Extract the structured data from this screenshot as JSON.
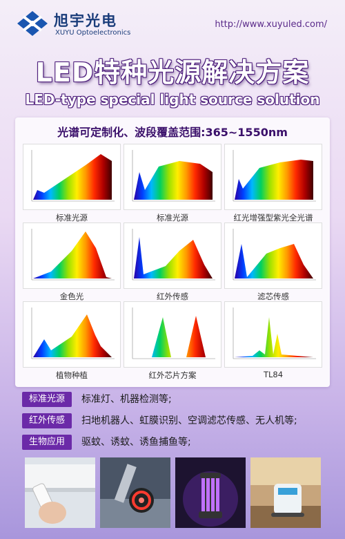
{
  "brand": {
    "name_cn": "旭宇光电",
    "name_en": "XUYU Optoelectronics",
    "url": "http://www.xuyuled.com/"
  },
  "title": "LED特种光源解决方案",
  "subtitle": "LED-type special light source solution",
  "panel_title": "光谱可定制化、波段覆盖范围:365~1550nm",
  "spectra": [
    {
      "caption": "标准光源"
    },
    {
      "caption": "标准光源"
    },
    {
      "caption": "红光增强型紫光全光谱"
    },
    {
      "caption": "金色光"
    },
    {
      "caption": "红外传感"
    },
    {
      "caption": "滤芯传感"
    },
    {
      "caption": "植物种植"
    },
    {
      "caption": "红外芯片方案"
    },
    {
      "caption": "TL84"
    }
  ],
  "features": [
    {
      "tag": "标准光源",
      "desc": "标准灯、机器检测等;"
    },
    {
      "tag": "红外传感",
      "desc": "扫地机器人、虹膜识别、空调滤芯传感、无人机等;"
    },
    {
      "tag": "生物应用",
      "desc": "驱蚊、诱蚊、诱鱼捕鱼等;"
    }
  ],
  "colors": {
    "accent": "#6b2aa8",
    "title_outline": "#4b1b7a"
  }
}
